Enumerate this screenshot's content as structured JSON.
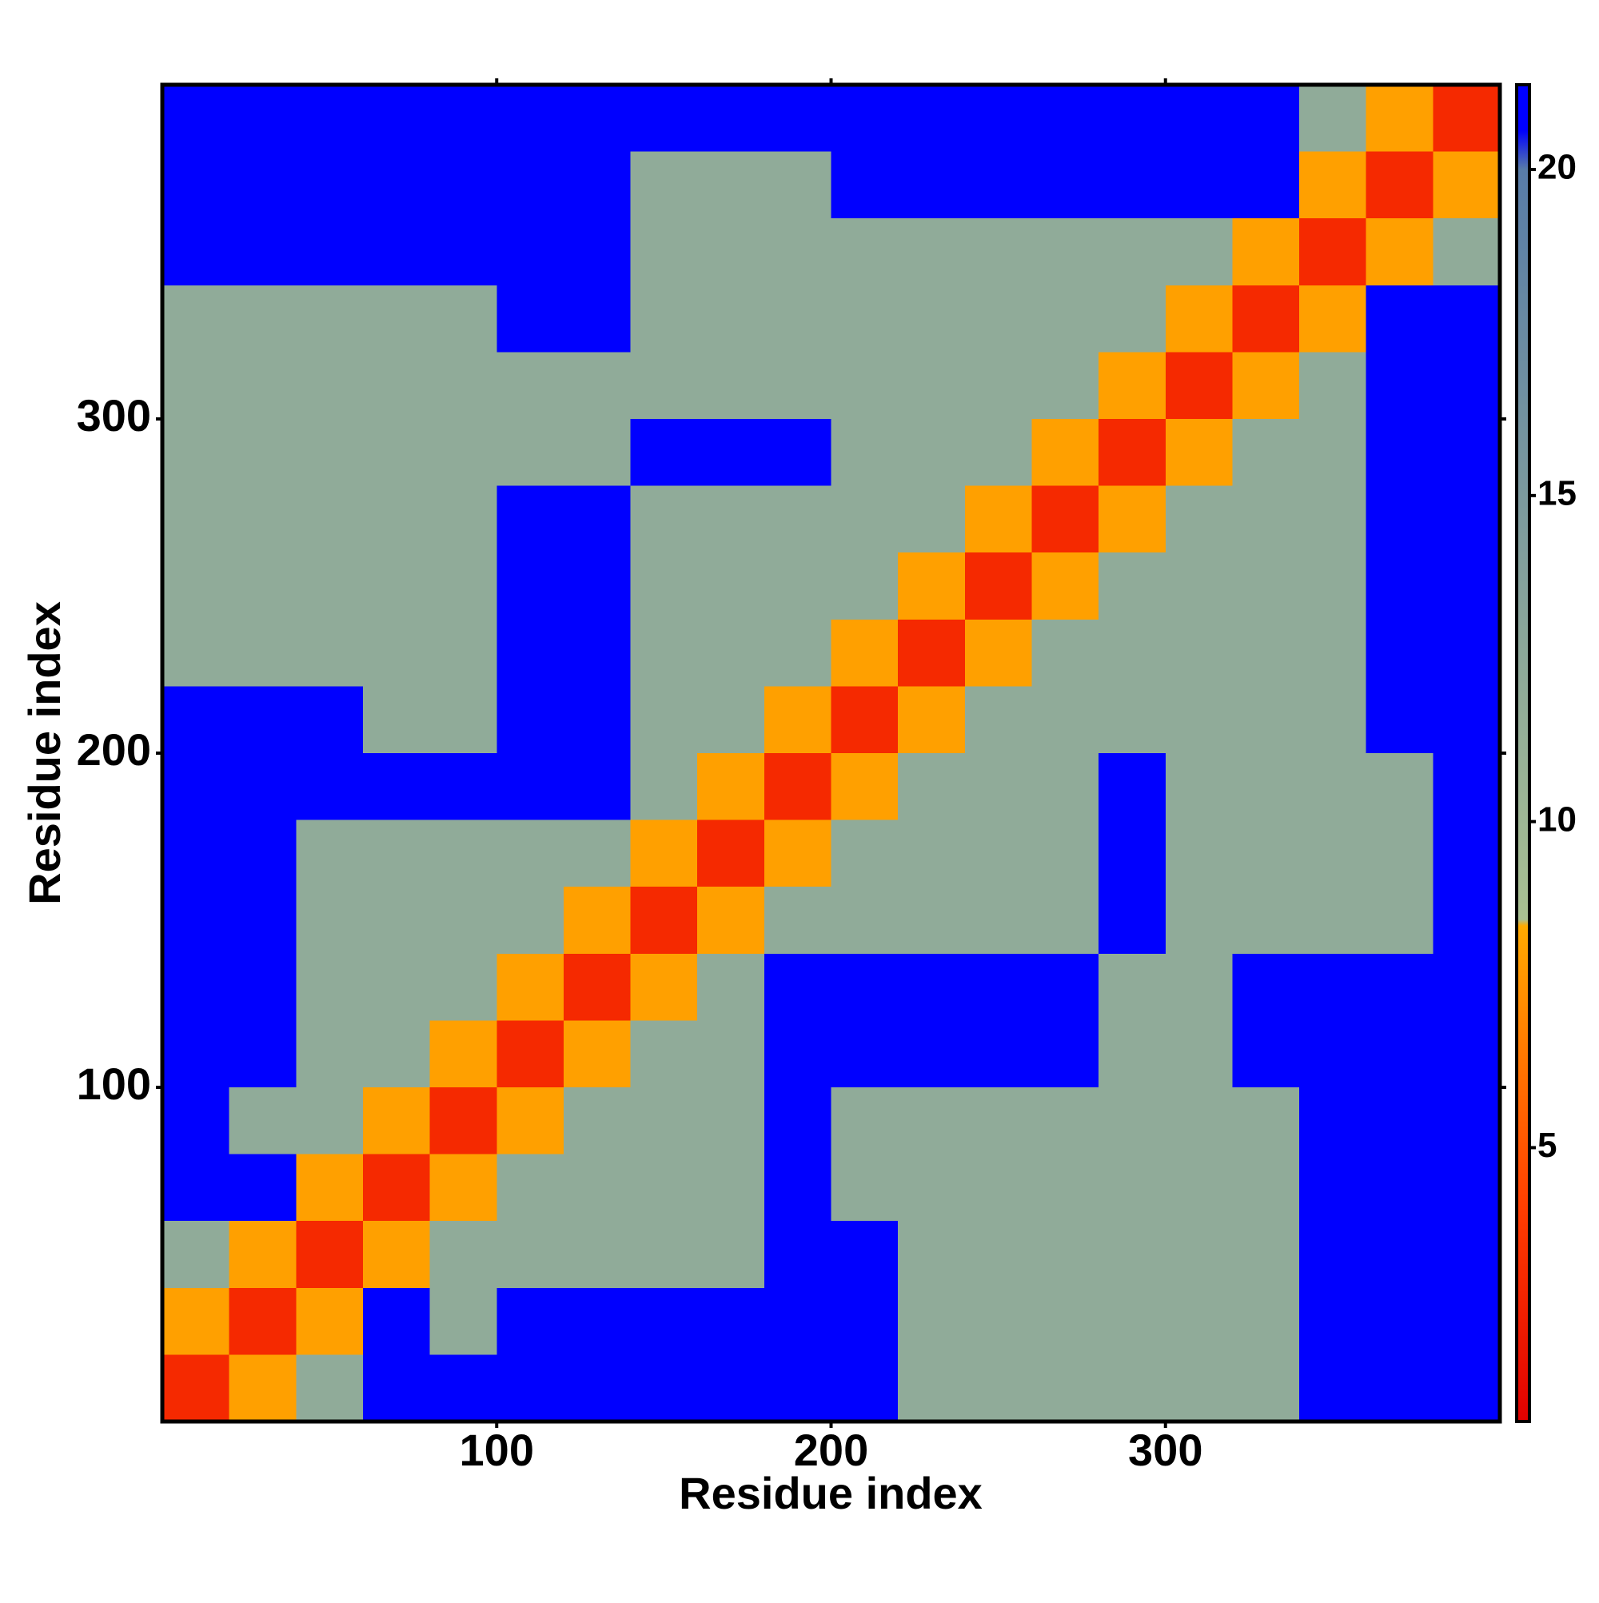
{
  "chart_data": {
    "type": "heatmap",
    "xlabel": "Residue index",
    "ylabel": "Residue index",
    "xbins": [
      0,
      20,
      40,
      60,
      80,
      100,
      120,
      140,
      160,
      180,
      200,
      220,
      240,
      260,
      280,
      300,
      320,
      340,
      360,
      380,
      400
    ],
    "ybins": [
      0,
      20,
      40,
      60,
      80,
      100,
      120,
      140,
      160,
      180,
      200,
      220,
      240,
      260,
      280,
      300,
      320,
      340,
      360,
      380,
      400
    ],
    "z": [
      [
        3,
        8,
        12,
        21,
        21,
        21,
        21,
        21,
        21,
        21,
        21,
        12,
        12,
        12,
        12,
        12,
        12,
        21,
        21,
        21
      ],
      [
        8,
        3,
        8,
        21,
        12,
        21,
        21,
        21,
        21,
        21,
        21,
        12,
        12,
        12,
        12,
        12,
        12,
        21,
        21,
        21
      ],
      [
        12,
        8,
        3,
        8,
        12,
        12,
        12,
        12,
        12,
        21,
        21,
        12,
        12,
        12,
        12,
        12,
        12,
        21,
        21,
        21
      ],
      [
        21,
        21,
        8,
        3,
        8,
        12,
        12,
        12,
        12,
        21,
        12,
        12,
        12,
        12,
        12,
        12,
        12,
        21,
        21,
        21
      ],
      [
        21,
        12,
        12,
        8,
        3,
        8,
        12,
        12,
        12,
        21,
        12,
        12,
        12,
        12,
        12,
        12,
        12,
        21,
        21,
        21
      ],
      [
        21,
        21,
        12,
        12,
        8,
        3,
        8,
        12,
        12,
        21,
        21,
        21,
        21,
        21,
        12,
        12,
        21,
        21,
        21,
        21
      ],
      [
        21,
        21,
        12,
        12,
        12,
        8,
        3,
        8,
        12,
        21,
        21,
        21,
        21,
        21,
        12,
        12,
        21,
        21,
        21,
        21
      ],
      [
        21,
        21,
        12,
        12,
        12,
        12,
        8,
        3,
        8,
        12,
        12,
        12,
        12,
        12,
        21,
        12,
        12,
        12,
        12,
        21
      ],
      [
        21,
        21,
        12,
        12,
        12,
        12,
        12,
        8,
        3,
        8,
        12,
        12,
        12,
        12,
        21,
        12,
        12,
        12,
        12,
        21
      ],
      [
        21,
        21,
        21,
        21,
        21,
        21,
        21,
        12,
        8,
        3,
        8,
        12,
        12,
        12,
        21,
        12,
        12,
        12,
        12,
        21
      ],
      [
        21,
        21,
        21,
        12,
        12,
        21,
        21,
        12,
        12,
        8,
        3,
        8,
        12,
        12,
        12,
        12,
        12,
        12,
        21,
        21
      ],
      [
        12,
        12,
        12,
        12,
        12,
        21,
        21,
        12,
        12,
        12,
        8,
        3,
        8,
        12,
        12,
        12,
        12,
        12,
        21,
        21
      ],
      [
        12,
        12,
        12,
        12,
        12,
        21,
        21,
        12,
        12,
        12,
        12,
        8,
        3,
        8,
        12,
        12,
        12,
        12,
        21,
        21
      ],
      [
        12,
        12,
        12,
        12,
        12,
        21,
        21,
        12,
        12,
        12,
        12,
        12,
        8,
        3,
        8,
        12,
        12,
        12,
        21,
        21
      ],
      [
        12,
        12,
        12,
        12,
        12,
        12,
        12,
        21,
        21,
        21,
        12,
        12,
        12,
        8,
        3,
        8,
        12,
        12,
        21,
        21
      ],
      [
        12,
        12,
        12,
        12,
        12,
        12,
        12,
        12,
        12,
        12,
        12,
        12,
        12,
        12,
        8,
        3,
        8,
        12,
        21,
        21
      ],
      [
        12,
        12,
        12,
        12,
        12,
        21,
        21,
        12,
        12,
        12,
        12,
        12,
        12,
        12,
        12,
        8,
        3,
        8,
        21,
        21
      ],
      [
        21,
        21,
        21,
        21,
        21,
        21,
        21,
        12,
        12,
        12,
        12,
        12,
        12,
        12,
        12,
        12,
        8,
        3,
        8,
        12
      ],
      [
        21,
        21,
        21,
        21,
        21,
        21,
        21,
        12,
        12,
        12,
        21,
        21,
        21,
        21,
        21,
        21,
        21,
        8,
        3,
        8
      ],
      [
        21,
        21,
        21,
        21,
        21,
        21,
        21,
        21,
        21,
        21,
        21,
        21,
        21,
        21,
        21,
        21,
        21,
        12,
        8,
        3
      ]
    ],
    "xlim": [
      0,
      400
    ],
    "ylim": [
      0,
      400
    ],
    "xticks": [
      100,
      200,
      300
    ],
    "yticks": [
      100,
      200,
      300
    ],
    "colorbar": {
      "lim": [
        0.8,
        21.3
      ],
      "ticks": [
        5,
        10,
        15,
        20
      ]
    },
    "colorscale": [
      [
        0.8,
        "#e00000"
      ],
      [
        4,
        "#ff3c00"
      ],
      [
        8.4,
        "#ffaa00"
      ],
      [
        8.5,
        "#a9c092"
      ],
      [
        20,
        "#587ca8"
      ],
      [
        20.6,
        "#0000ff"
      ],
      [
        21.3,
        "#0000ff"
      ]
    ]
  }
}
